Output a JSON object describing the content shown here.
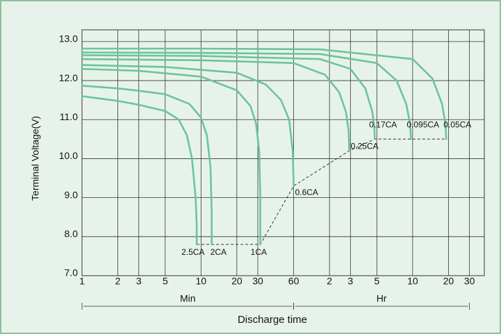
{
  "chart_data": {
    "type": "line",
    "xlabel": "Discharge time",
    "ylabel": "Terminal Voltage(V)",
    "xscale": "log",
    "xlim": [
      1,
      2400
    ],
    "ylim": [
      7,
      13.3
    ],
    "xticks": [
      1,
      2,
      3,
      5,
      10,
      20,
      30,
      60,
      {
        "value": 120,
        "label": "2"
      },
      {
        "value": 180,
        "label": "3"
      },
      {
        "value": 300,
        "label": "5"
      },
      {
        "value": 600,
        "label": "10"
      },
      {
        "value": 1200,
        "label": "20"
      },
      {
        "value": 1800,
        "label": "30"
      }
    ],
    "yticks": [
      {
        "value": 7,
        "label": "7.0"
      },
      {
        "value": 8,
        "label": "8.0"
      },
      {
        "value": 9,
        "label": "9.0"
      },
      {
        "value": 10,
        "label": "10.0"
      },
      {
        "value": 11,
        "label": "11.0"
      },
      {
        "value": 12,
        "label": "12.0"
      },
      {
        "value": 13,
        "label": "13.0"
      }
    ],
    "grid": true,
    "sections": [
      {
        "label": "Min",
        "from": 1,
        "to": 60
      },
      {
        "label": "Hr",
        "from": 60,
        "to": 1800
      }
    ],
    "series": [
      {
        "name": "2.5CA",
        "color": "#6cc49a",
        "x": [
          1,
          2,
          3,
          5,
          6.5,
          7.6,
          8.4,
          9,
          9.2,
          9.2
        ],
        "values": [
          11.6,
          11.48,
          11.38,
          11.22,
          11.0,
          10.6,
          10.0,
          9.0,
          8.3,
          7.8
        ]
      },
      {
        "name": "2CA",
        "color": "#6cc49a",
        "x": [
          1,
          2,
          3,
          5,
          8,
          10,
          11.2,
          12,
          12.3,
          12.3
        ],
        "values": [
          11.87,
          11.8,
          11.74,
          11.65,
          11.4,
          11.05,
          10.6,
          9.8,
          8.6,
          7.8
        ]
      },
      {
        "name": "1CA",
        "color": "#6cc49a",
        "x": [
          1,
          3,
          10,
          20,
          26,
          29,
          30.8,
          31.5,
          31.5
        ],
        "values": [
          12.3,
          12.25,
          12.1,
          11.75,
          11.35,
          10.9,
          10.2,
          9.0,
          7.8
        ]
      },
      {
        "name": "0.6CA",
        "color": "#6cc49a",
        "x": [
          1,
          5,
          20,
          35,
          47,
          55,
          59,
          60
        ],
        "values": [
          12.4,
          12.35,
          12.2,
          11.9,
          11.5,
          11.0,
          10.2,
          9.3
        ]
      },
      {
        "name": "0.25CA",
        "color": "#6cc49a",
        "x": [
          1,
          10,
          60,
          110,
          145,
          165,
          174,
          176
        ],
        "values": [
          12.55,
          12.52,
          12.45,
          12.15,
          11.7,
          11.2,
          10.7,
          10.2
        ]
      },
      {
        "name": "0.17CA",
        "color": "#6cc49a",
        "x": [
          1,
          10,
          100,
          180,
          240,
          275,
          286,
          288
        ],
        "values": [
          12.65,
          12.63,
          12.55,
          12.3,
          11.8,
          11.2,
          10.8,
          10.5
        ]
      },
      {
        "name": "0.095CA",
        "color": "#6cc49a",
        "x": [
          1,
          10,
          100,
          300,
          440,
          530,
          570,
          580
        ],
        "values": [
          12.72,
          12.71,
          12.68,
          12.45,
          12.0,
          11.4,
          10.9,
          10.5
        ]
      },
      {
        "name": "0.05CA",
        "color": "#6cc49a",
        "x": [
          1,
          10,
          100,
          600,
          880,
          1060,
          1130,
          1150
        ],
        "values": [
          12.82,
          12.82,
          12.8,
          12.55,
          12.05,
          11.4,
          10.9,
          10.5
        ]
      }
    ],
    "end_line": {
      "color": "#333333",
      "x": [
        9.2,
        31.5,
        60,
        176,
        288,
        1150
      ],
      "values": [
        7.8,
        7.8,
        9.3,
        10.2,
        10.5,
        10.5
      ]
    }
  }
}
